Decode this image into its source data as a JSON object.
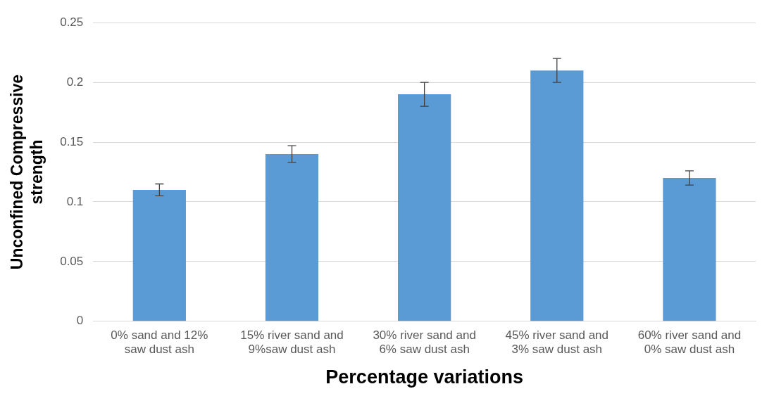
{
  "chart_data": {
    "type": "bar",
    "xlabel": "Percentage variations",
    "ylabel": "Unconfined Compressive strength",
    "categories": [
      "0% sand and 12% saw dust ash",
      "15% river sand and 9%saw dust ash",
      "30% river sand and 6% saw dust ash",
      "45% river sand and 3% saw dust ash",
      "60% river sand and 0% saw dust ash"
    ],
    "values": [
      0.11,
      0.14,
      0.19,
      0.21,
      0.12
    ],
    "errors": [
      0.005,
      0.007,
      0.01,
      0.01,
      0.006
    ],
    "color": "#5b9bd5",
    "ylim": [
      0,
      0.25
    ],
    "yticks": [
      0,
      0.05,
      0.1,
      0.15,
      0.2,
      0.25
    ],
    "grid": "y",
    "legend": false
  }
}
